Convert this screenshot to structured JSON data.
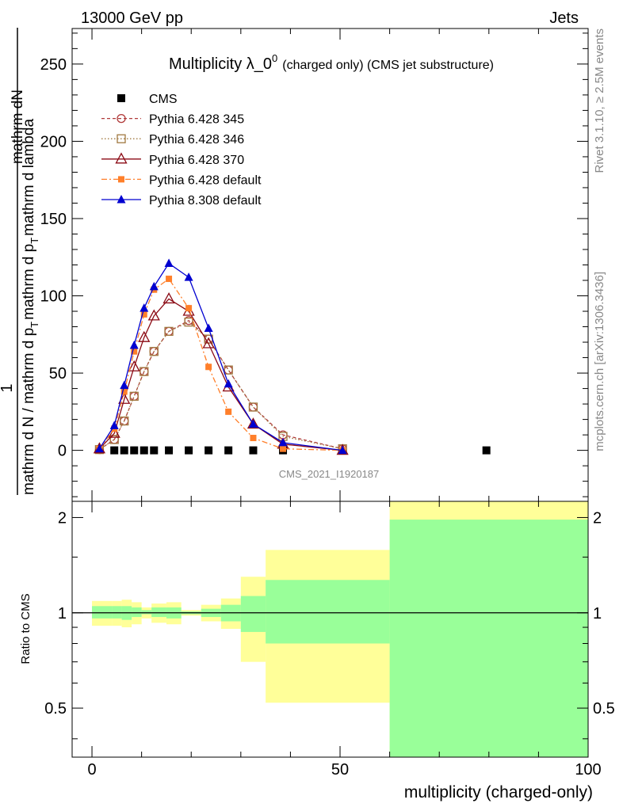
{
  "header": {
    "left": "13000 GeV pp",
    "right": "Jets"
  },
  "side_labels": {
    "rivet": "Rivet 3.1.10, ≥ 2.5M events",
    "mcplots": "mcplots.cern.ch [arXiv:1306.3436]"
  },
  "watermark": "CMS_2021_I1920187",
  "colors": {
    "cms": "#000000",
    "p345": "#b03a3a",
    "p346": "#a07840",
    "p370": "#8b0a14",
    "p6def": "#ff7f2a",
    "p8def": "#0000d0",
    "band_outer": "#ffff99",
    "band_inner": "#99ff99"
  },
  "chart_data": [
    {
      "type": "line",
      "title": "Multiplicity λ_0",
      "title_sup": "0",
      "subtitle": "(charged only) (CMS jet substructure)",
      "ylabel_top": "1",
      "ylabel_num": "mathrm dN",
      "ylabel_den_a": "mathrm d N / mathrm d p",
      "ylabel_den_b": "mathrm d p",
      "ylabel_den_c": "mathrm d lambda",
      "ylabel_sub": "T",
      "ylabel_sub2": "T",
      "xlim": [
        -4,
        100
      ],
      "ylim": [
        -33,
        273
      ],
      "yticks": [
        0,
        50,
        100,
        150,
        200,
        250
      ],
      "ytick_labels": [
        "0",
        "50",
        "100",
        "150",
        "200",
        "250"
      ],
      "series": [
        {
          "name": "CMS",
          "key": "cms",
          "marker": "square-filled",
          "x": [
            4.5,
            6.5,
            8.5,
            10.5,
            12.5,
            15.5,
            19.5,
            23.5,
            27.5,
            32.5,
            38.5,
            79.5
          ],
          "y": [
            0,
            0,
            0,
            0,
            0,
            0,
            0,
            0,
            0,
            0,
            0,
            0
          ]
        },
        {
          "name": "Pythia 6.428 345",
          "key": "p345",
          "marker": "circle-open",
          "dash": "4,3",
          "x": [
            1.5,
            4.5,
            6.5,
            8.5,
            10.5,
            12.5,
            15.5,
            19.5,
            23.5,
            27.5,
            32.5,
            38.5,
            50.5
          ],
          "y": [
            0.5,
            7,
            19,
            35,
            51,
            64,
            77,
            84,
            72,
            52,
            28,
            10,
            1
          ]
        },
        {
          "name": "Pythia 6.428 346",
          "key": "p346",
          "marker": "square-open",
          "dash": "1.5,2.5",
          "x": [
            1.5,
            4.5,
            6.5,
            8.5,
            10.5,
            12.5,
            15.5,
            19.5,
            23.5,
            27.5,
            32.5,
            38.5,
            50.5
          ],
          "y": [
            0.5,
            7,
            19,
            35,
            51,
            64,
            77,
            83,
            72,
            52,
            28,
            9,
            1
          ]
        },
        {
          "name": "Pythia 6.428 370",
          "key": "p370",
          "marker": "triangle-open",
          "dash": "",
          "x": [
            1.5,
            4.5,
            6.5,
            8.5,
            10.5,
            12.5,
            15.5,
            19.5,
            23.5,
            27.5,
            32.5,
            38.5,
            50.5
          ],
          "y": [
            1,
            11,
            33,
            54,
            73,
            87,
            98,
            90,
            69,
            41,
            17,
            4,
            0
          ]
        },
        {
          "name": "Pythia 6.428 default",
          "key": "p6def",
          "marker": "square-small-filled",
          "dash": "7,3,2,3",
          "x": [
            1.5,
            4.5,
            6.5,
            8.5,
            10.5,
            12.5,
            15.5,
            19.5,
            23.5,
            27.5,
            32.5,
            38.5,
            50.5
          ],
          "y": [
            1,
            14,
            38,
            64,
            88,
            104,
            111,
            92,
            54,
            25,
            8,
            1,
            0
          ]
        },
        {
          "name": "Pythia 8.308 default",
          "key": "p8def",
          "marker": "triangle-filled",
          "dash": "",
          "x": [
            1.5,
            4.5,
            6.5,
            8.5,
            10.5,
            12.5,
            15.5,
            19.5,
            23.5,
            27.5,
            32.5,
            38.5,
            50.5
          ],
          "y": [
            1,
            16,
            42,
            68,
            92,
            106,
            121,
            112,
            79,
            43,
            17,
            5,
            0
          ]
        }
      ]
    },
    {
      "type": "area",
      "title": "Ratio to CMS",
      "ylabel": "Ratio to CMS",
      "xlabel": "multiplicity (charged-only)",
      "xlim": [
        -4,
        100
      ],
      "ylim": [
        0.35,
        2.25
      ],
      "xticks": [
        0,
        50,
        100
      ],
      "xtick_labels": [
        "0",
        "50",
        "100"
      ],
      "yticks": [
        0.5,
        1,
        2
      ],
      "ytick_labels": [
        "0.5",
        "1",
        "2"
      ],
      "reference": 1,
      "bin_edges": [
        0,
        4,
        6,
        8,
        10,
        12,
        15,
        18,
        22,
        26,
        30,
        35,
        60,
        100
      ],
      "outer_low": [
        0.91,
        0.91,
        0.9,
        0.92,
        0.96,
        0.93,
        0.92,
        0.98,
        0.94,
        0.89,
        0.7,
        0.52,
        0.0
      ],
      "outer_high": [
        1.09,
        1.09,
        1.1,
        1.08,
        1.04,
        1.07,
        1.08,
        1.02,
        1.06,
        1.11,
        1.3,
        1.58,
        2.3
      ],
      "inner_low": [
        0.96,
        0.96,
        0.95,
        0.97,
        0.99,
        0.97,
        0.96,
        0.99,
        0.97,
        0.94,
        0.87,
        0.8,
        0.0
      ],
      "inner_high": [
        1.05,
        1.05,
        1.05,
        1.04,
        1.02,
        1.04,
        1.04,
        1.01,
        1.03,
        1.06,
        1.13,
        1.27,
        1.97
      ]
    }
  ]
}
